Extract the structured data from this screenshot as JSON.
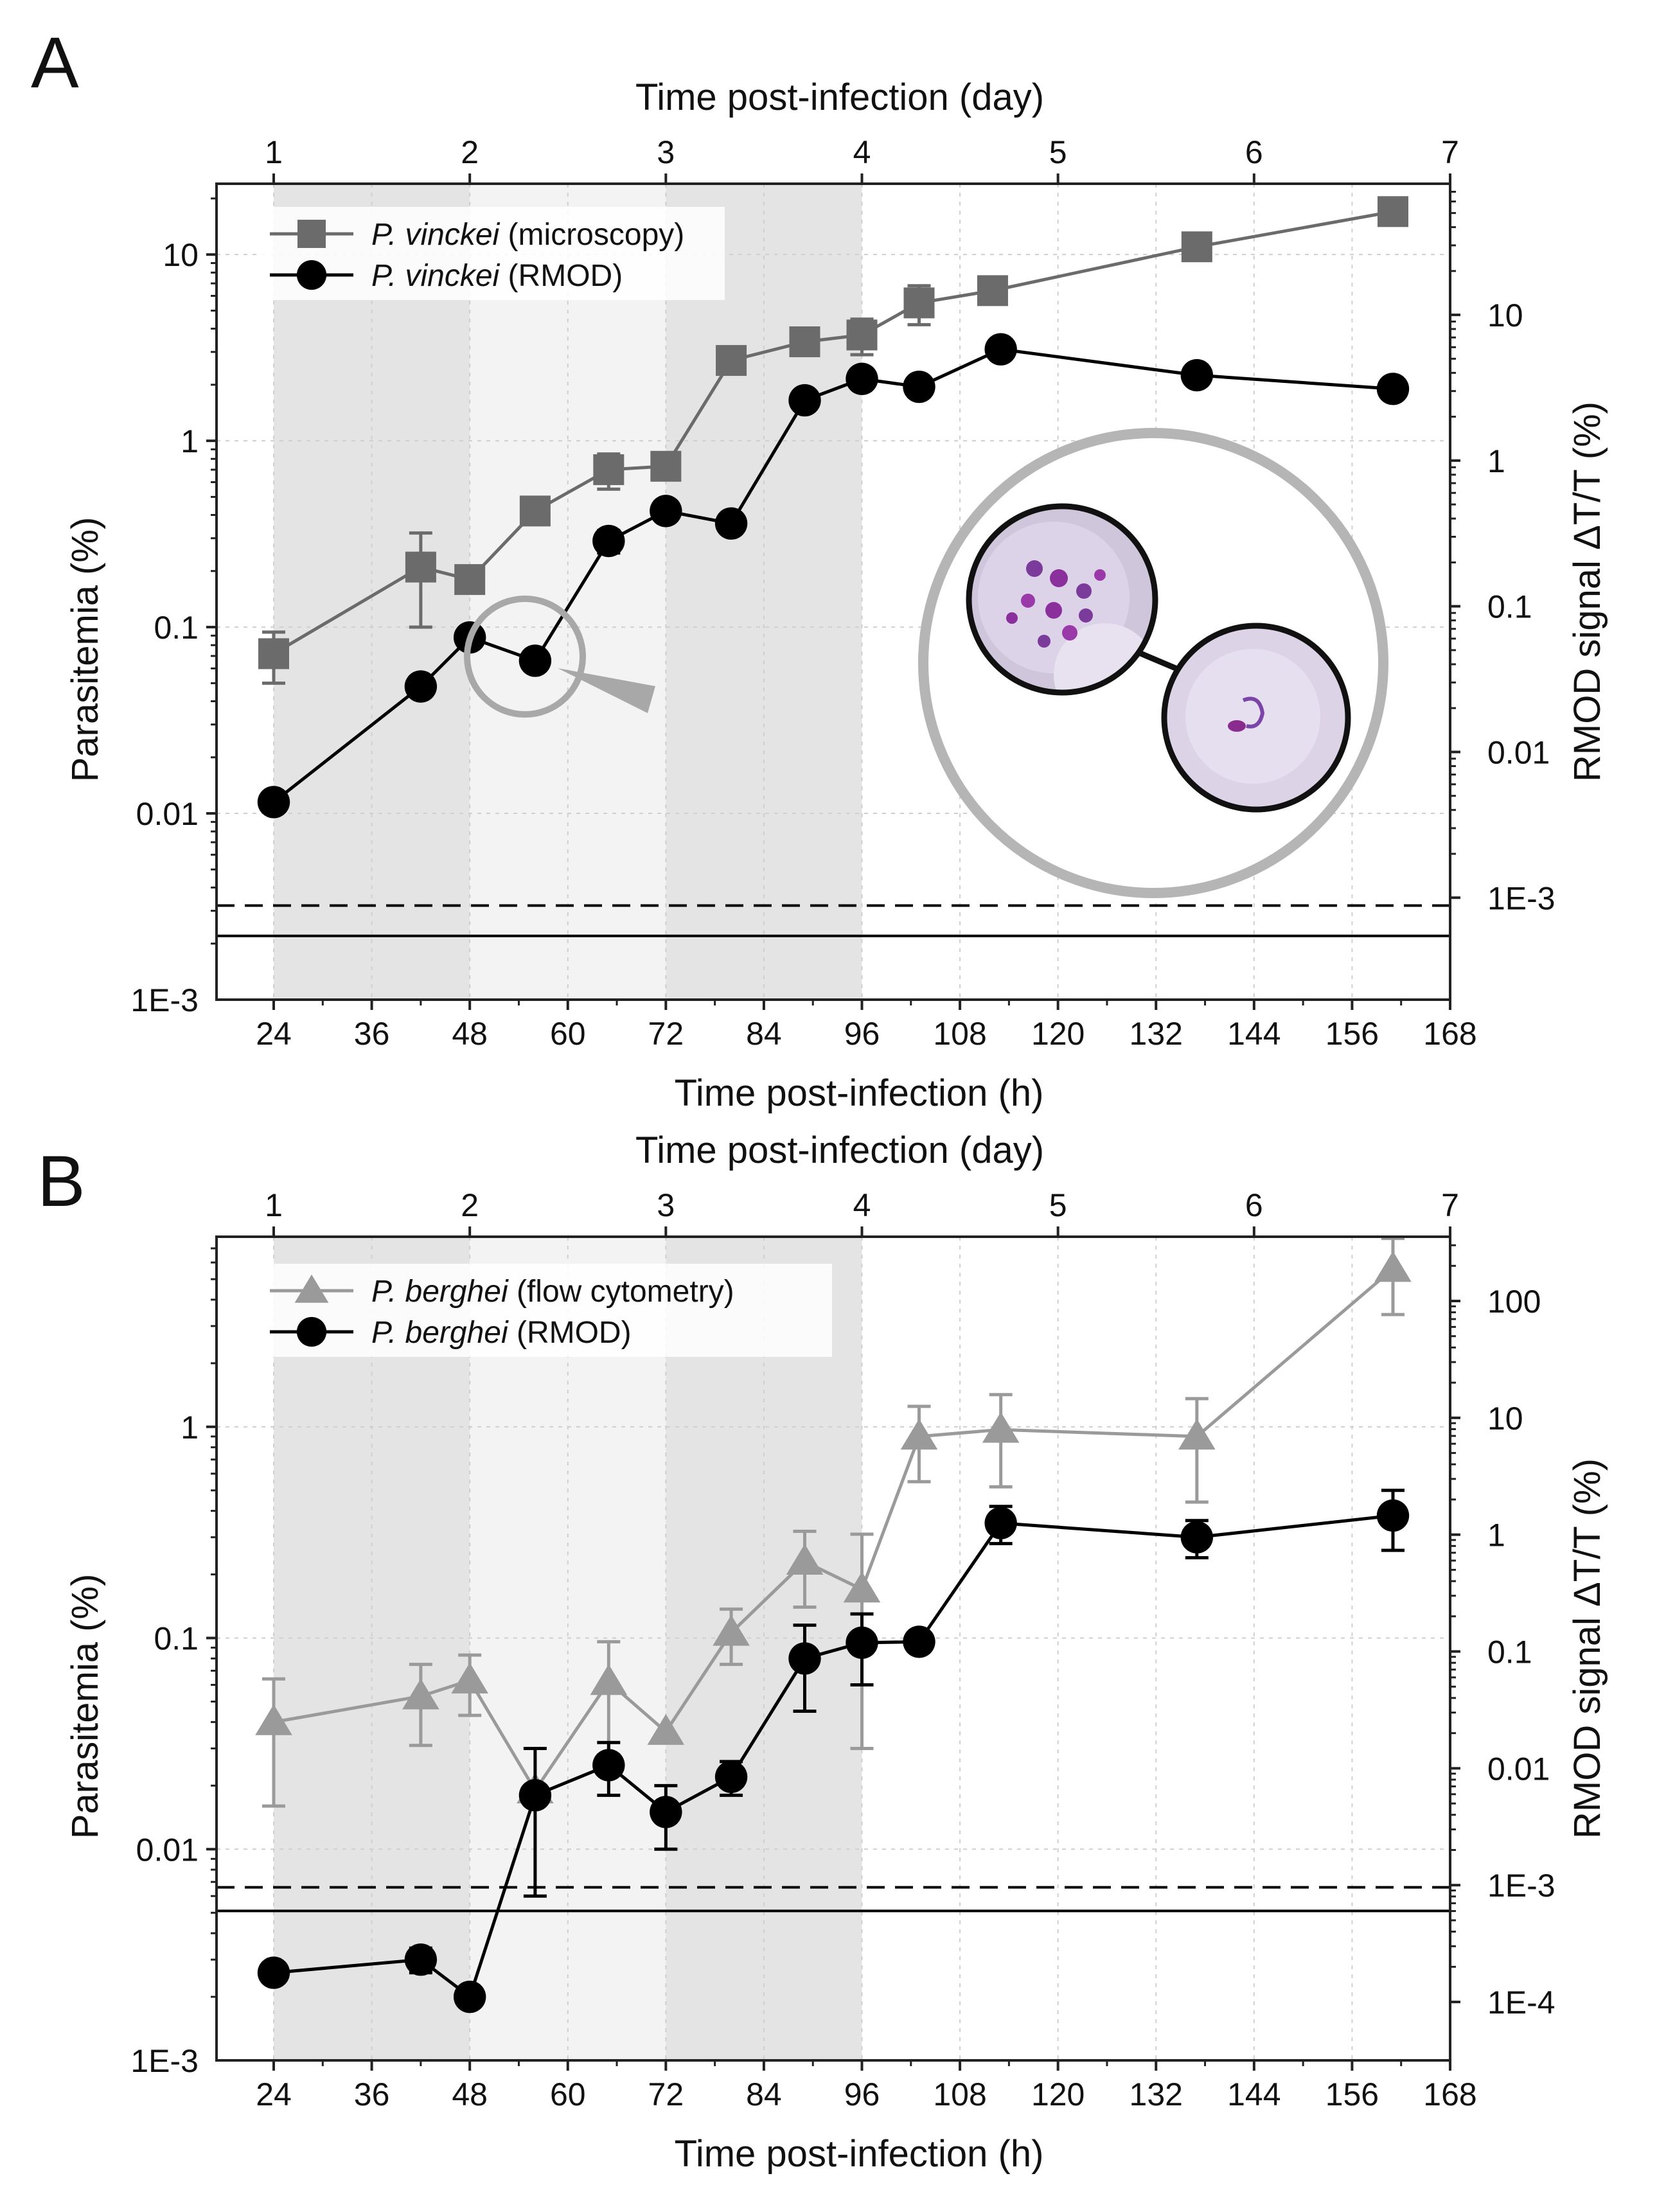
{
  "chart_data": [
    {
      "panel_label": "A",
      "type": "line",
      "title": "",
      "xlabel": "Time post-infection (h)",
      "x2label": "Time post-infection (day)",
      "ylabel": "Parasitemia (%)",
      "y2label": "RMOD signal ΔT/T (%)",
      "xlim": [
        17,
        168
      ],
      "x_ticks": [
        24,
        36,
        48,
        60,
        72,
        84,
        96,
        108,
        120,
        132,
        144,
        156,
        168
      ],
      "x2_ticks": [
        1,
        2,
        3,
        4,
        5,
        6,
        7
      ],
      "x2_tick_hours": [
        24,
        48,
        72,
        96,
        120,
        144,
        168
      ],
      "ylim_log10": [
        -3,
        1.38
      ],
      "y_ticks": [
        0.01,
        0.1,
        1,
        10
      ],
      "y_tick_labels": [
        "0.01",
        "0.1",
        "1",
        "10"
      ],
      "y_bottom_label": "1E-3",
      "y2lim_log10": [
        -3.7,
        1.9
      ],
      "y2_ticks_log10": [
        -3,
        -2,
        -1,
        0,
        1
      ],
      "y2_tick_labels": [
        "1E-3",
        "0.01",
        "0.1",
        "1",
        "10"
      ],
      "shaded_bands": [
        [
          24,
          48,
          "dark"
        ],
        [
          48,
          72,
          "light"
        ],
        [
          72,
          96,
          "dark"
        ]
      ],
      "hlines": [
        {
          "style": "dashed",
          "y": 0.0032
        },
        {
          "style": "solid",
          "y": 0.0022
        }
      ],
      "series": [
        {
          "name": "P. vinckei",
          "method": "(microscopy)",
          "marker": "square",
          "color": "#6b6b6b",
          "axis": "left",
          "x": [
            24,
            42,
            48,
            56,
            65,
            72,
            80,
            89,
            96,
            103,
            112,
            137,
            161
          ],
          "y": [
            0.072,
            0.21,
            0.18,
            0.42,
            0.7,
            0.73,
            2.7,
            3.4,
            3.7,
            5.5,
            6.4,
            11,
            17
          ],
          "err": [
            0.022,
            0.11,
            0,
            0,
            0.15,
            0,
            0,
            0,
            0.8,
            1.3,
            0,
            0,
            0
          ]
        },
        {
          "name": "P. vinckei",
          "method": "(RMOD)",
          "marker": "circle",
          "color": "#000000",
          "axis": "left",
          "x": [
            24,
            42,
            48,
            56,
            65,
            72,
            80,
            89,
            96,
            103,
            113,
            137,
            161
          ],
          "y": [
            0.0115,
            0.048,
            0.088,
            0.066,
            0.29,
            0.42,
            0.36,
            1.65,
            2.15,
            1.95,
            3.1,
            2.25,
            1.9
          ],
          "err": [
            0,
            0,
            0,
            0,
            0.04,
            0,
            0,
            0,
            0,
            0,
            0,
            0,
            0
          ]
        }
      ],
      "annotation": "magnified blood-smear inset"
    },
    {
      "panel_label": "B",
      "type": "line",
      "title": "",
      "xlabel": "Time post-infection (h)",
      "x2label": "Time post-infection (day)",
      "ylabel": "Parasitemia (%)",
      "y2label": "RMOD signal ΔT/T (%)",
      "xlim": [
        17,
        168
      ],
      "x_ticks": [
        24,
        36,
        48,
        60,
        72,
        84,
        96,
        108,
        120,
        132,
        144,
        156,
        168
      ],
      "x2_ticks": [
        1,
        2,
        3,
        4,
        5,
        6,
        7
      ],
      "x2_tick_hours": [
        24,
        48,
        72,
        96,
        120,
        144,
        168
      ],
      "ylim_log10": [
        -3,
        0.9
      ],
      "y_ticks": [
        0.01,
        0.1,
        1
      ],
      "y_tick_labels": [
        "0.01",
        "0.1",
        "1"
      ],
      "y_bottom_label": "1E-3",
      "y2lim_log10": [
        -4.5,
        2.55
      ],
      "y2_ticks_log10": [
        -4,
        -3,
        -2,
        -1,
        0,
        1,
        2
      ],
      "y2_tick_labels": [
        "1E-4",
        "1E-3",
        "0.01",
        "0.1",
        "1",
        "10",
        "100"
      ],
      "shaded_bands": [
        [
          24,
          48,
          "dark"
        ],
        [
          48,
          72,
          "light"
        ],
        [
          72,
          96,
          "dark"
        ]
      ],
      "hlines": [
        {
          "style": "dashed",
          "y": 0.0066
        },
        {
          "style": "solid",
          "y": 0.0051
        }
      ],
      "series": [
        {
          "name": "P. berghei",
          "method": "(flow cytometry)",
          "marker": "triangle",
          "color": "#9a9a9a",
          "axis": "left",
          "x": [
            24,
            42,
            48,
            56,
            65,
            72,
            80,
            89,
            96,
            103,
            113,
            137,
            161
          ],
          "y": [
            0.04,
            0.053,
            0.063,
            0.019,
            0.062,
            0.036,
            0.106,
            0.23,
            0.17,
            0.9,
            0.97,
            0.9,
            5.6
          ],
          "err": [
            0.024,
            0.022,
            0.02,
            0,
            0.034,
            0,
            0.031,
            0.09,
            0.14,
            0.35,
            0.45,
            0.46,
            2.2
          ]
        },
        {
          "name": "P. berghei",
          "method": "(RMOD)",
          "marker": "circle",
          "color": "#000000",
          "axis": "left",
          "x": [
            24,
            42,
            48,
            56,
            65,
            72,
            80,
            89,
            96,
            103,
            113,
            137,
            161
          ],
          "y": [
            0.0026,
            0.003,
            0.002,
            0.018,
            0.025,
            0.015,
            0.022,
            0.08,
            0.095,
            0.096,
            0.35,
            0.3,
            0.38
          ],
          "err": [
            0,
            0.0004,
            0,
            0.012,
            0.007,
            0.005,
            0.004,
            0.035,
            0.035,
            0,
            0.07,
            0.06,
            0.12
          ]
        }
      ]
    }
  ]
}
